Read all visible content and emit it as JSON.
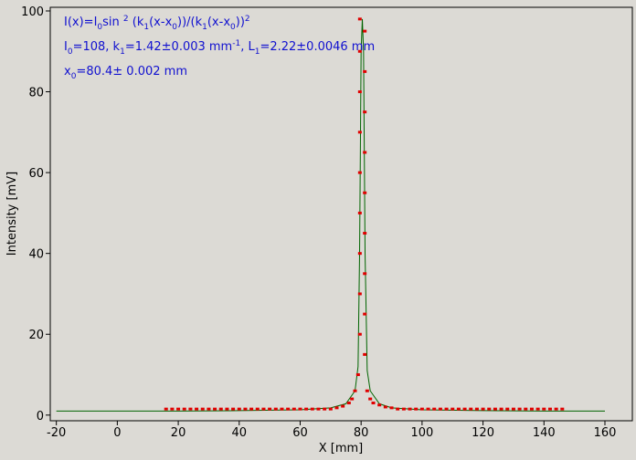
{
  "chart_data": {
    "type": "scatter",
    "xlabel": "X [mm]",
    "ylabel": "Intensity [mV]",
    "xlim": [
      -22,
      169
    ],
    "ylim": [
      -1.4,
      100.9
    ],
    "xticks": [
      -20,
      0,
      20,
      40,
      60,
      80,
      100,
      120,
      140,
      160
    ],
    "yticks": [
      0,
      20,
      40,
      60,
      80,
      100
    ],
    "grid": false,
    "annotation": [
      [
        {
          "text": "I(x)=I",
          "pos": "normal"
        },
        {
          "text": "0",
          "pos": "sub"
        },
        {
          "text": "sin ",
          "pos": "normal"
        },
        {
          "text": "2",
          "pos": "sup"
        },
        {
          "text": " (k",
          "pos": "normal"
        },
        {
          "text": "1",
          "pos": "sub"
        },
        {
          "text": "(x-x",
          "pos": "normal"
        },
        {
          "text": "0",
          "pos": "sub"
        },
        {
          "text": "))/(k",
          "pos": "normal"
        },
        {
          "text": "1",
          "pos": "sub"
        },
        {
          "text": "(x-x",
          "pos": "normal"
        },
        {
          "text": "0",
          "pos": "sub"
        },
        {
          "text": "))",
          "pos": "normal"
        },
        {
          "text": "2",
          "pos": "sup"
        }
      ],
      [
        {
          "text": "I",
          "pos": "normal"
        },
        {
          "text": "0",
          "pos": "sub"
        },
        {
          "text": "=108,  k",
          "pos": "normal"
        },
        {
          "text": "1",
          "pos": "sub"
        },
        {
          "text": "=1.42±0.003 mm",
          "pos": "normal"
        },
        {
          "text": "-1",
          "pos": "sup"
        },
        {
          "text": ",   L",
          "pos": "normal"
        },
        {
          "text": "1",
          "pos": "sub"
        },
        {
          "text": "=2.22±0.0046 mm",
          "pos": "normal"
        }
      ],
      [
        {
          "text": "x",
          "pos": "normal"
        },
        {
          "text": "0",
          "pos": "sub"
        },
        {
          "text": "=80.4±   0.002 mm",
          "pos": "normal"
        }
      ]
    ],
    "annotation_color": "#1010d0",
    "scatter": {
      "color": "#e00000",
      "x": [
        16,
        18,
        20,
        22,
        24,
        26,
        28,
        30,
        32,
        34,
        36,
        38,
        40,
        42,
        44,
        46,
        48,
        50,
        52,
        54,
        56,
        58,
        60,
        62,
        64,
        66,
        68,
        70,
        72,
        74,
        76,
        77,
        78,
        79,
        79.6,
        79.6,
        79.6,
        79.6,
        79.6,
        79.6,
        79.6,
        79.6,
        79.6,
        81.2,
        81.2,
        81.2,
        81.2,
        81.2,
        81.2,
        81.2,
        81.2,
        81.2,
        82,
        83,
        84,
        86,
        88,
        90,
        92,
        94,
        96,
        98,
        100,
        102,
        104,
        106,
        108,
        110,
        112,
        114,
        116,
        118,
        120,
        122,
        124,
        126,
        128,
        130,
        132,
        134,
        136,
        138,
        140,
        142,
        144,
        146
      ],
      "y": [
        1.5,
        1.5,
        1.5,
        1.5,
        1.5,
        1.5,
        1.5,
        1.5,
        1.5,
        1.5,
        1.5,
        1.5,
        1.5,
        1.5,
        1.5,
        1.5,
        1.5,
        1.5,
        1.5,
        1.5,
        1.5,
        1.5,
        1.5,
        1.5,
        1.5,
        1.5,
        1.5,
        1.5,
        1.8,
        2.2,
        3,
        4,
        6,
        10,
        20,
        30,
        40,
        50,
        60,
        70,
        80,
        90,
        98,
        95,
        85,
        75,
        65,
        55,
        45,
        35,
        25,
        15,
        6,
        4,
        3,
        2.5,
        2,
        1.8,
        1.5,
        1.5,
        1.5,
        1.5,
        1.5,
        1.5,
        1.5,
        1.5,
        1.5,
        1.5,
        1.5,
        1.5,
        1.5,
        1.5,
        1.5,
        1.5,
        1.5,
        1.5,
        1.5,
        1.5,
        1.5,
        1.5,
        1.5,
        1.5,
        1.5,
        1.5,
        1.5,
        1.5
      ]
    },
    "fit": {
      "color": "#006400",
      "x": [
        -20,
        0,
        20,
        40,
        60,
        70,
        75,
        78,
        79,
        79.5,
        80,
        80.4,
        80.8,
        81.3,
        82,
        83,
        86,
        90,
        100,
        120,
        140,
        160
      ],
      "y": [
        1,
        1,
        1,
        1.1,
        1.3,
        1.8,
        2.8,
        6,
        12,
        40,
        90,
        98,
        90,
        40,
        11,
        6,
        2.8,
        1.8,
        1.3,
        1.1,
        1,
        1
      ]
    }
  }
}
